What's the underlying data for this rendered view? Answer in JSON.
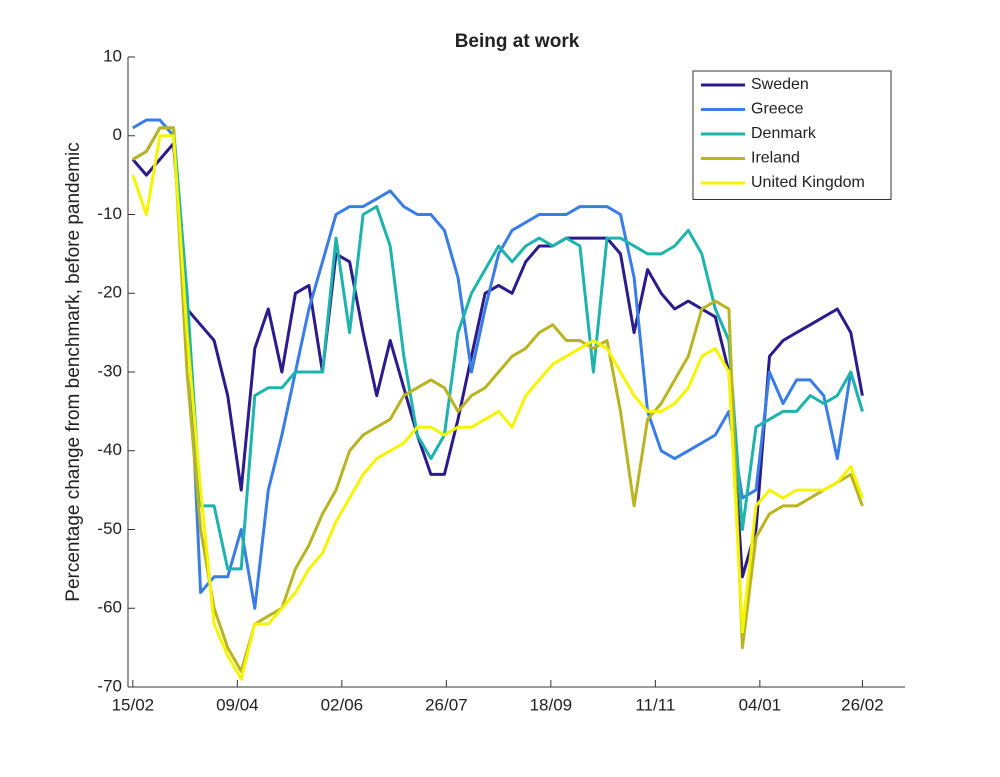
{
  "chart_data": {
    "type": "line",
    "title": "Being at work",
    "y_label": "Percentage change from benchmark, before pandemic",
    "x": [
      0,
      7,
      14,
      21,
      28,
      35,
      42,
      49,
      56,
      63,
      70,
      77,
      84,
      91,
      98,
      105,
      112,
      119,
      126,
      133,
      140,
      147,
      154,
      161,
      168,
      175,
      182,
      189,
      196,
      203,
      210,
      217,
      224,
      231,
      238,
      245,
      252,
      259,
      266,
      273,
      280,
      287,
      294,
      301,
      308,
      315,
      322,
      329,
      336,
      343,
      350,
      357,
      364,
      371,
      377
    ],
    "xlim": [
      -2.5,
      399
    ],
    "xticks": [
      {
        "value": 0,
        "label": "15/02"
      },
      {
        "value": 54,
        "label": "09/04"
      },
      {
        "value": 108,
        "label": "02/06"
      },
      {
        "value": 162,
        "label": "26/07"
      },
      {
        "value": 216,
        "label": "18/09"
      },
      {
        "value": 270,
        "label": "11/11"
      },
      {
        "value": 324,
        "label": "04/01"
      },
      {
        "value": 377,
        "label": "26/02"
      }
    ],
    "ylim": [
      -70,
      10
    ],
    "yticks": [
      -70,
      -60,
      -50,
      -40,
      -30,
      -20,
      -10,
      0,
      10
    ],
    "grid": false,
    "legend": "northeast",
    "series": [
      {
        "name": "Sweden",
        "color": "#2b1b8c",
        "values": [
          -3,
          -5,
          -3,
          -1,
          -22,
          -24,
          -26,
          -33,
          -45,
          -27,
          -22,
          -30,
          -20,
          -19,
          -30,
          -15,
          -16,
          -25,
          -33,
          -26,
          -32,
          -38,
          -43,
          -43,
          -36,
          -28,
          -20,
          -19,
          -20,
          -16,
          -14,
          -14,
          -13,
          -13,
          -13,
          -13,
          -15,
          -25,
          -17,
          -20,
          -22,
          -21,
          -22,
          -23,
          -30,
          -56,
          -50,
          -28,
          -26,
          -25,
          -24,
          -23,
          -22,
          -25,
          -33
        ]
      },
      {
        "name": "Greece",
        "color": "#3a7de6",
        "values": [
          1,
          2,
          2,
          0,
          -20,
          -58,
          -56,
          -56,
          -50,
          -60,
          -45,
          -38,
          -30,
          -22,
          -16,
          -10,
          -9,
          -9,
          -8,
          -7,
          -9,
          -10,
          -10,
          -12,
          -18,
          -30,
          -22,
          -15,
          -12,
          -11,
          -10,
          -10,
          -10,
          -9,
          -9,
          -9,
          -10,
          -18,
          -35,
          -40,
          -41,
          -40,
          -39,
          -38,
          -35,
          -46,
          -45,
          -30,
          -34,
          -31,
          -31,
          -33,
          -41,
          -30,
          -35
        ]
      },
      {
        "name": "Denmark",
        "color": "#1fb3ad",
        "values": [
          -3,
          -2,
          1,
          1,
          -20,
          -47,
          -47,
          -55,
          -55,
          -33,
          -32,
          -32,
          -30,
          -30,
          -30,
          -13,
          -25,
          -10,
          -9,
          -14,
          -28,
          -38,
          -41,
          -38,
          -25,
          -20,
          -17,
          -14,
          -16,
          -14,
          -13,
          -14,
          -13,
          -14,
          -30,
          -13,
          -13,
          -14,
          -15,
          -15,
          -14,
          -12,
          -15,
          -22,
          -26,
          -50,
          -37,
          -36,
          -35,
          -35,
          -33,
          -34,
          -33,
          -30,
          -35
        ]
      },
      {
        "name": "Ireland",
        "color": "#b9b421",
        "values": [
          -3,
          -2,
          1,
          1,
          -30,
          -50,
          -60,
          -65,
          -68,
          -62,
          -61,
          -60,
          -55,
          -52,
          -48,
          -45,
          -40,
          -38,
          -37,
          -36,
          -33,
          -32,
          -31,
          -32,
          -35,
          -33,
          -32,
          -30,
          -28,
          -27,
          -25,
          -24,
          -26,
          -26,
          -27,
          -26,
          -35,
          -47,
          -36,
          -34,
          -31,
          -28,
          -22,
          -21,
          -22,
          -65,
          -51,
          -48,
          -47,
          -47,
          -46,
          -45,
          -44,
          -43,
          -47
        ]
      },
      {
        "name": "United Kingdom",
        "color": "#f5f500",
        "values": [
          -5,
          -10,
          0,
          0,
          -25,
          -45,
          -62,
          -66,
          -69,
          -62,
          -62,
          -60,
          -58,
          -55,
          -53,
          -49,
          -46,
          -43,
          -41,
          -40,
          -39,
          -37,
          -37,
          -38,
          -37,
          -37,
          -36,
          -35,
          -37,
          -33,
          -31,
          -29,
          -28,
          -27,
          -26,
          -27,
          -30,
          -33,
          -35,
          -35,
          -34,
          -32,
          -28,
          -27,
          -30,
          -63,
          -47,
          -45,
          -46,
          -45,
          -45,
          -45,
          -44,
          -42,
          -46
        ]
      }
    ]
  }
}
